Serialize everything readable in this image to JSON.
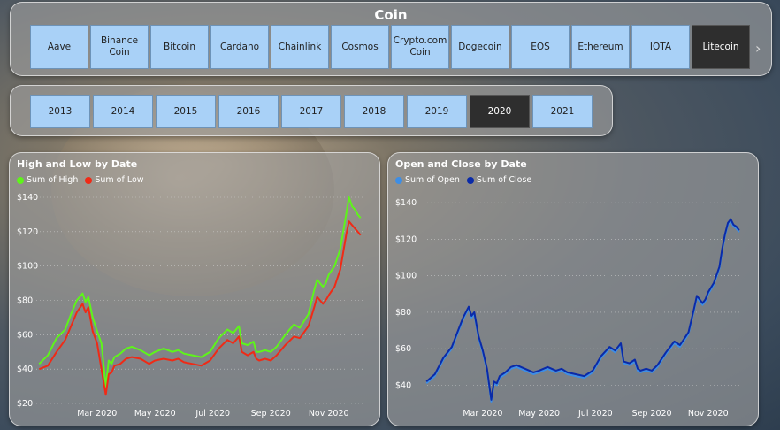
{
  "coin_slicer": {
    "title": "Coin",
    "items": [
      "Aave",
      "Binance Coin",
      "Bitcoin",
      "Cardano",
      "Chainlink",
      "Cosmos",
      "Crypto.com Coin",
      "Dogecoin",
      "EOS",
      "Ethereum",
      "IOTA",
      "Litecoin"
    ],
    "selected": "Litecoin",
    "more_icon": "chevron-right-icon"
  },
  "year_slicer": {
    "items": [
      "2013",
      "2014",
      "2015",
      "2016",
      "2017",
      "2018",
      "2019",
      "2020",
      "2021"
    ],
    "selected": "2020"
  },
  "charts": [
    {
      "id": "high-low",
      "title": "High and Low by Date",
      "legend": [
        {
          "label": "Sum of High",
          "color": "#5ef51a"
        },
        {
          "label": "Sum of Low",
          "color": "#f02a16"
        }
      ]
    },
    {
      "id": "open-close",
      "title": "Open and Close by Date",
      "legend": [
        {
          "label": "Sum of Open",
          "color": "#3d8ee6"
        },
        {
          "label": "Sum of Close",
          "color": "#0a2aa8"
        }
      ]
    }
  ],
  "chart_data": [
    {
      "type": "line",
      "title": "High and Low by Date",
      "x_tick_labels": [
        "Mar 2020",
        "May 2020",
        "Jul 2020",
        "Sep 2020",
        "Nov 2020"
      ],
      "x_tick_months": [
        2,
        4,
        6,
        8,
        10
      ],
      "x_range_months": [
        -0.1,
        11.2
      ],
      "y_ticks": [
        20,
        40,
        60,
        80,
        100,
        120,
        140
      ],
      "y_tick_labels": [
        "$20",
        "$40",
        "$60",
        "$80",
        "$100",
        "$120",
        "$140"
      ],
      "ylim": [
        20,
        140
      ],
      "grid": true,
      "legend_position": "top-left",
      "x_months": [
        0,
        0.3,
        0.6,
        0.9,
        1.1,
        1.3,
        1.5,
        1.6,
        1.7,
        1.85,
        2.0,
        2.15,
        2.3,
        2.4,
        2.5,
        2.6,
        2.8,
        3.0,
        3.2,
        3.5,
        3.8,
        4.0,
        4.3,
        4.6,
        4.8,
        5.0,
        5.3,
        5.6,
        5.9,
        6.2,
        6.5,
        6.7,
        6.9,
        7.0,
        7.2,
        7.4,
        7.5,
        7.6,
        7.8,
        8.0,
        8.2,
        8.5,
        8.8,
        9.0,
        9.3,
        9.5,
        9.6,
        9.8,
        9.9,
        10.0,
        10.2,
        10.4,
        10.5,
        10.6,
        10.7,
        10.8,
        10.9,
        11.0,
        11.1
      ],
      "series": [
        {
          "name": "Sum of High",
          "color": "#5ef51a",
          "values": [
            43,
            48,
            58,
            63,
            72,
            80,
            84,
            79,
            82,
            70,
            62,
            55,
            30,
            45,
            43,
            47,
            49,
            52,
            53,
            51,
            48,
            50,
            52,
            50,
            51,
            49,
            48,
            47,
            50,
            58,
            63,
            61,
            65,
            55,
            54,
            56,
            50,
            50,
            51,
            50,
            53,
            60,
            66,
            64,
            72,
            86,
            92,
            88,
            90,
            95,
            100,
            110,
            120,
            130,
            140,
            135,
            133,
            130,
            128
          ],
          "smoothing": true
        },
        {
          "name": "Sum of Low",
          "color": "#f02a16",
          "values": [
            40,
            42,
            50,
            57,
            65,
            73,
            78,
            73,
            76,
            62,
            55,
            40,
            25,
            37,
            38,
            42,
            43,
            46,
            47,
            46,
            43,
            45,
            46,
            45,
            46,
            44,
            43,
            42,
            45,
            52,
            57,
            55,
            59,
            50,
            48,
            50,
            46,
            45,
            46,
            45,
            48,
            54,
            59,
            58,
            65,
            76,
            82,
            78,
            80,
            83,
            88,
            98,
            108,
            118,
            126,
            124,
            122,
            120,
            118
          ],
          "smoothing": true
        }
      ]
    },
    {
      "type": "line",
      "title": "Open and Close by Date",
      "x_tick_labels": [
        "Mar 2020",
        "May 2020",
        "Jul 2020",
        "Sep 2020",
        "Nov 2020"
      ],
      "x_tick_months": [
        2,
        4,
        6,
        8,
        10
      ],
      "x_range_months": [
        -0.1,
        11.2
      ],
      "y_ticks": [
        40,
        60,
        80,
        100,
        120,
        140
      ],
      "y_tick_labels": [
        "$40",
        "$60",
        "$80",
        "$100",
        "$120",
        "$140"
      ],
      "ylim": [
        30,
        143
      ],
      "grid": true,
      "legend_position": "top-left",
      "x_months": [
        0,
        0.3,
        0.6,
        0.9,
        1.1,
        1.3,
        1.5,
        1.6,
        1.7,
        1.85,
        2.0,
        2.15,
        2.3,
        2.4,
        2.5,
        2.6,
        2.8,
        3.0,
        3.2,
        3.5,
        3.8,
        4.0,
        4.3,
        4.6,
        4.8,
        5.0,
        5.3,
        5.6,
        5.9,
        6.2,
        6.5,
        6.7,
        6.9,
        7.0,
        7.2,
        7.4,
        7.5,
        7.6,
        7.8,
        8.0,
        8.2,
        8.5,
        8.8,
        9.0,
        9.3,
        9.5,
        9.6,
        9.8,
        9.9,
        10.0,
        10.2,
        10.4,
        10.5,
        10.6,
        10.7,
        10.8,
        10.9,
        11.0,
        11.1
      ],
      "series": [
        {
          "name": "Sum of Open",
          "color": "#3d8ee6",
          "values": [
            41,
            45,
            54,
            60,
            68,
            76,
            82,
            77,
            79,
            66,
            58,
            48,
            31,
            41,
            40,
            44,
            46,
            49,
            50,
            48,
            46,
            47,
            49,
            47,
            48,
            46,
            45,
            44,
            47,
            55,
            60,
            58,
            62,
            52,
            51,
            53,
            48,
            47,
            48,
            47,
            50,
            57,
            63,
            61,
            68,
            81,
            88,
            84,
            86,
            90,
            95,
            104,
            114,
            122,
            128,
            130,
            127,
            126,
            124
          ]
        },
        {
          "name": "Sum of Close",
          "color": "#0a2aa8",
          "values": [
            42,
            46,
            55,
            61,
            69,
            77,
            83,
            78,
            80,
            67,
            59,
            49,
            32,
            42,
            41,
            45,
            47,
            50,
            51,
            49,
            47,
            48,
            50,
            48,
            49,
            47,
            46,
            45,
            48,
            56,
            61,
            59,
            63,
            53,
            52,
            54,
            49,
            48,
            49,
            48,
            51,
            58,
            64,
            62,
            69,
            82,
            89,
            85,
            87,
            91,
            96,
            105,
            115,
            123,
            129,
            131,
            128,
            127,
            125
          ]
        }
      ]
    }
  ]
}
